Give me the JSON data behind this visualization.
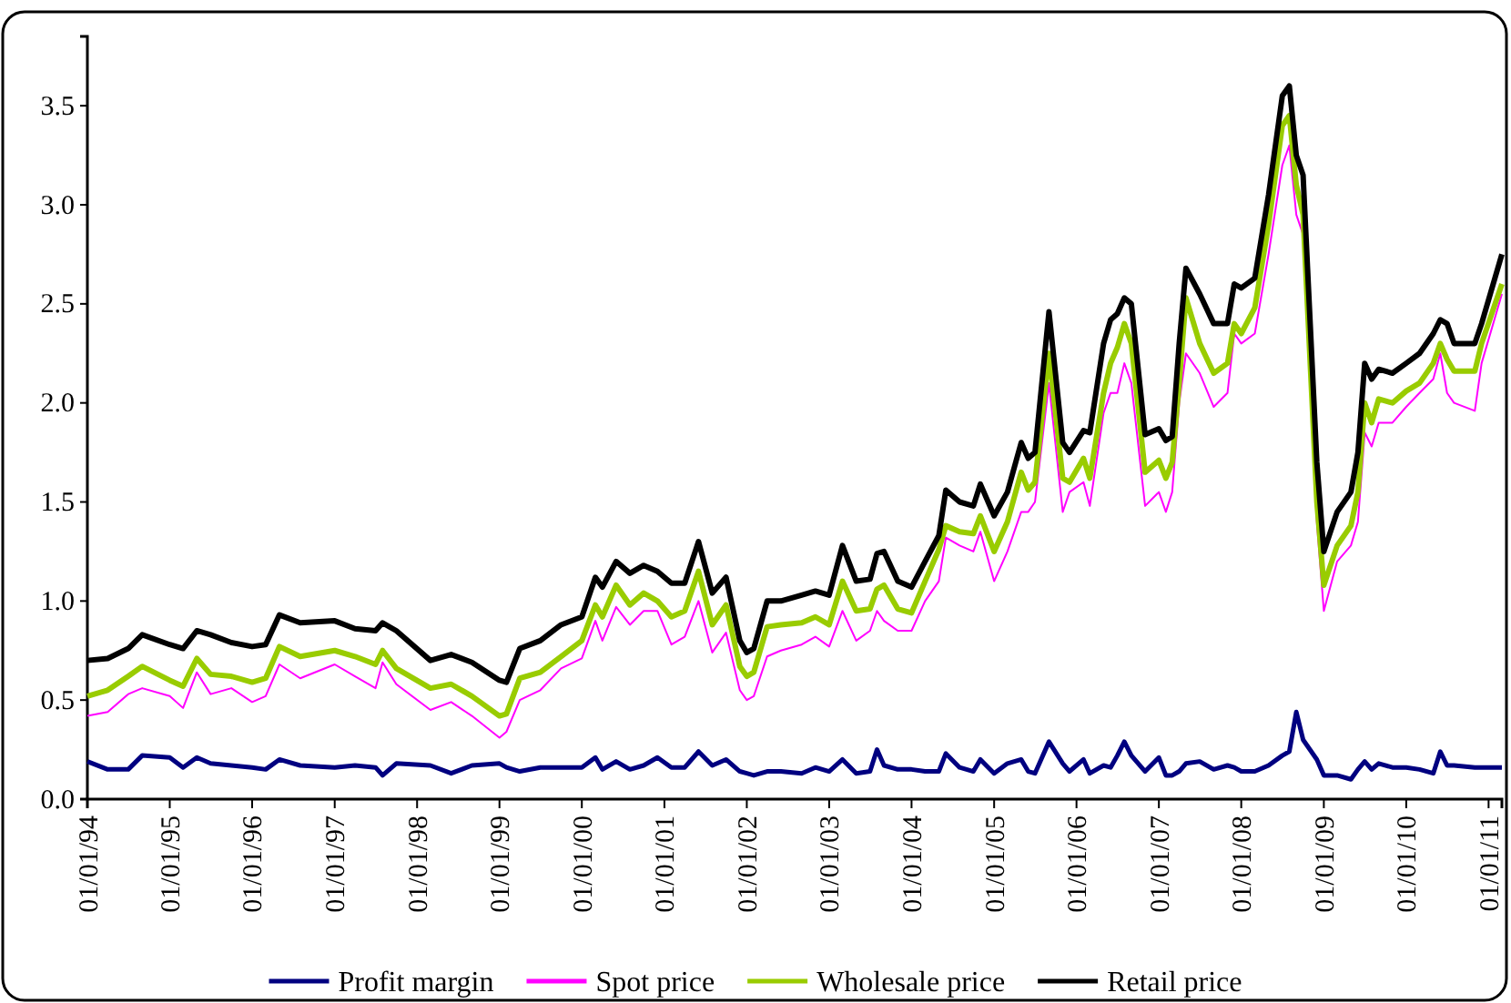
{
  "chart_data": {
    "type": "line",
    "x": [
      "1994-01",
      "1994-04",
      "1994-07",
      "1994-09",
      "1995-01",
      "1995-03",
      "1995-05",
      "1995-07",
      "1995-10",
      "1996-01",
      "1996-03",
      "1996-05",
      "1996-08",
      "1997-01",
      "1997-04",
      "1997-07",
      "1997-08",
      "1997-10",
      "1998-03",
      "1998-06",
      "1998-09",
      "1999-01",
      "1999-02",
      "1999-04",
      "1999-07",
      "1999-10",
      "2000-01",
      "2000-03",
      "2000-04",
      "2000-06",
      "2000-08",
      "2000-10",
      "2000-12",
      "2001-02",
      "2001-04",
      "2001-06",
      "2001-08",
      "2001-10",
      "2001-12",
      "2002-01",
      "2002-02",
      "2002-04",
      "2002-06",
      "2002-09",
      "2002-11",
      "2003-01",
      "2003-03",
      "2003-05",
      "2003-07",
      "2003-08",
      "2003-09",
      "2003-11",
      "2004-01",
      "2004-03",
      "2004-05",
      "2004-06",
      "2004-08",
      "2004-10",
      "2004-11",
      "2005-01",
      "2005-03",
      "2005-05",
      "2005-06",
      "2005-07",
      "2005-09",
      "2005-11",
      "2005-12",
      "2006-02",
      "2006-03",
      "2006-05",
      "2006-06",
      "2006-07",
      "2006-08",
      "2006-09",
      "2006-11",
      "2007-01",
      "2007-02",
      "2007-03",
      "2007-04",
      "2007-05",
      "2007-07",
      "2007-09",
      "2007-11",
      "2007-12",
      "2008-01",
      "2008-03",
      "2008-05",
      "2008-07",
      "2008-08",
      "2008-09",
      "2008-10",
      "2008-12",
      "2009-01",
      "2009-03",
      "2009-05",
      "2009-06",
      "2009-07",
      "2009-08",
      "2009-09",
      "2009-11",
      "2010-01",
      "2010-03",
      "2010-05",
      "2010-06",
      "2010-07",
      "2010-08",
      "2010-11",
      "2010-12",
      "2011-03"
    ],
    "series": [
      {
        "name": "Profit margin",
        "color": "#000080",
        "values": [
          0.19,
          0.15,
          0.15,
          0.22,
          0.21,
          0.16,
          0.21,
          0.18,
          0.17,
          0.16,
          0.15,
          0.2,
          0.17,
          0.16,
          0.17,
          0.16,
          0.12,
          0.18,
          0.17,
          0.13,
          0.17,
          0.18,
          0.16,
          0.14,
          0.16,
          0.16,
          0.16,
          0.21,
          0.15,
          0.19,
          0.15,
          0.17,
          0.21,
          0.16,
          0.16,
          0.24,
          0.17,
          0.2,
          0.14,
          0.13,
          0.12,
          0.14,
          0.14,
          0.13,
          0.16,
          0.14,
          0.2,
          0.13,
          0.14,
          0.25,
          0.17,
          0.15,
          0.15,
          0.14,
          0.14,
          0.23,
          0.16,
          0.14,
          0.2,
          0.13,
          0.18,
          0.2,
          0.14,
          0.13,
          0.29,
          0.18,
          0.14,
          0.2,
          0.13,
          0.17,
          0.16,
          0.22,
          0.29,
          0.22,
          0.14,
          0.21,
          0.12,
          0.12,
          0.14,
          0.18,
          0.19,
          0.15,
          0.17,
          0.16,
          0.14,
          0.14,
          0.17,
          0.22,
          0.24,
          0.44,
          0.3,
          0.2,
          0.12,
          0.12,
          0.1,
          0.15,
          0.19,
          0.15,
          0.18,
          0.16,
          0.16,
          0.15,
          0.13,
          0.24,
          0.17,
          0.17,
          0.16,
          0.16,
          0.16
        ]
      },
      {
        "name": "Spot price",
        "color": "#ff00ff",
        "values": [
          0.42,
          0.44,
          0.53,
          0.56,
          0.52,
          0.46,
          0.64,
          0.53,
          0.56,
          0.49,
          0.52,
          0.68,
          0.61,
          0.68,
          0.62,
          0.56,
          0.69,
          0.58,
          0.45,
          0.49,
          0.42,
          0.31,
          0.34,
          0.5,
          0.55,
          0.66,
          0.71,
          0.9,
          0.8,
          0.97,
          0.88,
          0.95,
          0.95,
          0.78,
          0.82,
          1.0,
          0.74,
          0.84,
          0.55,
          0.5,
          0.52,
          0.72,
          0.75,
          0.78,
          0.82,
          0.77,
          0.95,
          0.8,
          0.85,
          0.95,
          0.9,
          0.85,
          0.85,
          1.0,
          1.1,
          1.32,
          1.28,
          1.25,
          1.35,
          1.1,
          1.25,
          1.45,
          1.45,
          1.5,
          2.1,
          1.45,
          1.55,
          1.6,
          1.48,
          1.95,
          2.05,
          2.05,
          2.2,
          2.1,
          1.48,
          1.55,
          1.45,
          1.55,
          2.0,
          2.25,
          2.15,
          1.98,
          2.05,
          2.35,
          2.3,
          2.35,
          2.75,
          3.2,
          3.3,
          2.95,
          2.85,
          1.4,
          0.95,
          1.2,
          1.28,
          1.4,
          1.85,
          1.78,
          1.9,
          1.9,
          1.98,
          2.05,
          2.12,
          2.25,
          2.05,
          2.0,
          1.96,
          2.2,
          2.55
        ]
      },
      {
        "name": "Wholesale price",
        "color": "#99cc00",
        "values": [
          0.52,
          0.55,
          0.62,
          0.67,
          0.6,
          0.57,
          0.71,
          0.63,
          0.62,
          0.59,
          0.61,
          0.77,
          0.72,
          0.75,
          0.72,
          0.68,
          0.75,
          0.66,
          0.56,
          0.58,
          0.52,
          0.42,
          0.43,
          0.61,
          0.64,
          0.72,
          0.8,
          0.98,
          0.92,
          1.08,
          0.98,
          1.04,
          1.0,
          0.92,
          0.95,
          1.15,
          0.88,
          0.98,
          0.67,
          0.62,
          0.64,
          0.87,
          0.88,
          0.89,
          0.92,
          0.88,
          1.1,
          0.95,
          0.96,
          1.06,
          1.08,
          0.96,
          0.94,
          1.1,
          1.26,
          1.38,
          1.35,
          1.34,
          1.43,
          1.25,
          1.4,
          1.65,
          1.56,
          1.6,
          2.25,
          1.62,
          1.6,
          1.72,
          1.62,
          2.05,
          2.2,
          2.28,
          2.4,
          2.3,
          1.65,
          1.71,
          1.62,
          1.7,
          2.1,
          2.53,
          2.3,
          2.15,
          2.2,
          2.4,
          2.35,
          2.48,
          2.9,
          3.4,
          3.45,
          3.1,
          2.95,
          1.5,
          1.08,
          1.28,
          1.38,
          1.55,
          2.0,
          1.9,
          2.02,
          2.0,
          2.06,
          2.1,
          2.2,
          2.3,
          2.22,
          2.16,
          2.16,
          2.3,
          2.6
        ]
      },
      {
        "name": "Retail price",
        "color": "#000000",
        "values": [
          0.7,
          0.71,
          0.76,
          0.83,
          0.78,
          0.76,
          0.85,
          0.83,
          0.79,
          0.77,
          0.78,
          0.93,
          0.89,
          0.9,
          0.86,
          0.85,
          0.89,
          0.85,
          0.7,
          0.73,
          0.69,
          0.6,
          0.59,
          0.76,
          0.8,
          0.88,
          0.92,
          1.12,
          1.07,
          1.2,
          1.14,
          1.18,
          1.15,
          1.09,
          1.09,
          1.3,
          1.04,
          1.12,
          0.8,
          0.74,
          0.76,
          1.0,
          1.0,
          1.03,
          1.05,
          1.03,
          1.28,
          1.1,
          1.11,
          1.24,
          1.25,
          1.1,
          1.07,
          1.2,
          1.33,
          1.56,
          1.5,
          1.48,
          1.59,
          1.43,
          1.55,
          1.8,
          1.72,
          1.75,
          2.46,
          1.8,
          1.75,
          1.86,
          1.85,
          2.3,
          2.42,
          2.45,
          2.53,
          2.5,
          1.84,
          1.87,
          1.81,
          1.83,
          2.3,
          2.68,
          2.55,
          2.4,
          2.4,
          2.6,
          2.58,
          2.63,
          3.05,
          3.55,
          3.6,
          3.25,
          3.15,
          1.7,
          1.25,
          1.45,
          1.55,
          1.75,
          2.2,
          2.12,
          2.17,
          2.15,
          2.2,
          2.25,
          2.35,
          2.42,
          2.4,
          2.3,
          2.3,
          2.4,
          2.75
        ]
      }
    ],
    "xlim": [
      "1994-01",
      "2011-03"
    ],
    "xticks": [
      {
        "value": "1994-01-01",
        "label": "01/01/94"
      },
      {
        "value": "1995-01-01",
        "label": "01/01/95"
      },
      {
        "value": "1996-01-01",
        "label": "01/01/96"
      },
      {
        "value": "1997-01-01",
        "label": "01/01/97"
      },
      {
        "value": "1998-01-01",
        "label": "01/01/98"
      },
      {
        "value": "1999-01-01",
        "label": "01/01/99"
      },
      {
        "value": "2000-01-01",
        "label": "01/01/00"
      },
      {
        "value": "2001-01-01",
        "label": "01/01/01"
      },
      {
        "value": "2002-01-01",
        "label": "01/01/02"
      },
      {
        "value": "2003-01-01",
        "label": "01/01/03"
      },
      {
        "value": "2004-01-01",
        "label": "01/01/04"
      },
      {
        "value": "2005-01-01",
        "label": "01/01/05"
      },
      {
        "value": "2006-01-01",
        "label": "01/01/06"
      },
      {
        "value": "2007-01-01",
        "label": "01/01/07"
      },
      {
        "value": "2008-01-01",
        "label": "01/01/08"
      },
      {
        "value": "2009-01-01",
        "label": "01/01/09"
      },
      {
        "value": "2010-01-01",
        "label": "01/01/10"
      },
      {
        "value": "2011-01-01",
        "label": "01/01/11"
      }
    ],
    "ylim": [
      0,
      3.85
    ],
    "yticks": [
      {
        "value": 0,
        "label": "0.0"
      },
      0.5,
      {
        "value": 1,
        "label": "1.0"
      },
      1.5,
      {
        "value": 2,
        "label": "2.0"
      },
      2.5,
      {
        "value": 3,
        "label": "3.0"
      },
      3.5
    ],
    "grid": false,
    "legend": "bottom",
    "marker": "none",
    "line_style": "solid"
  }
}
